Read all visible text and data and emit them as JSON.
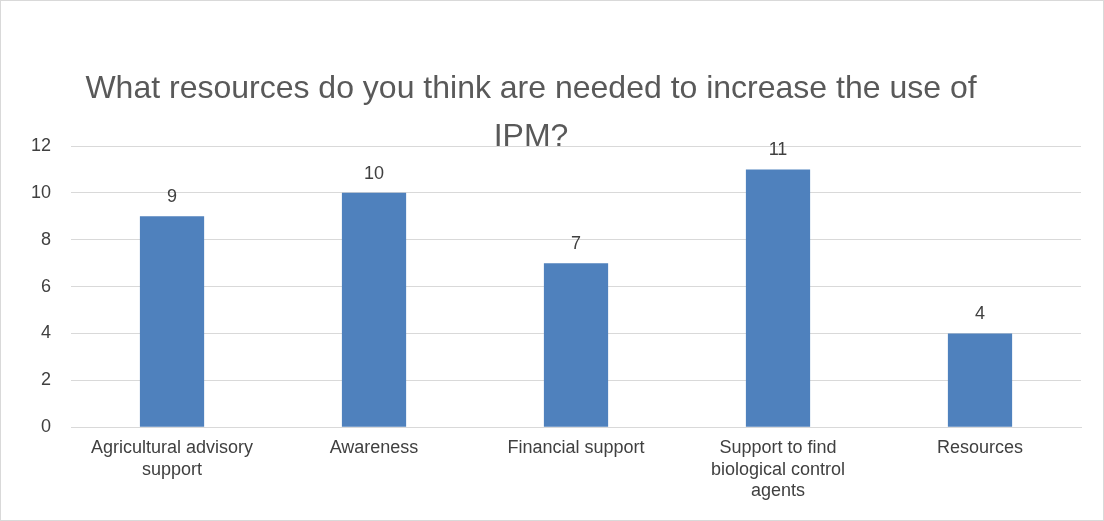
{
  "chart_data": {
    "type": "bar",
    "title": "What resources do you think are needed to increase the use of IPM?",
    "categories": [
      "Agricultural advisory support",
      "Awareness",
      "Financial support",
      "Support to find biological control agents",
      "Resources"
    ],
    "values": [
      9,
      10,
      7,
      11,
      4
    ],
    "color": "#4f81bd",
    "ylim": [
      0,
      12
    ],
    "yticks": [
      0,
      2,
      4,
      6,
      8,
      10,
      12
    ],
    "grid": "y",
    "data_labels": true,
    "legend": false
  }
}
